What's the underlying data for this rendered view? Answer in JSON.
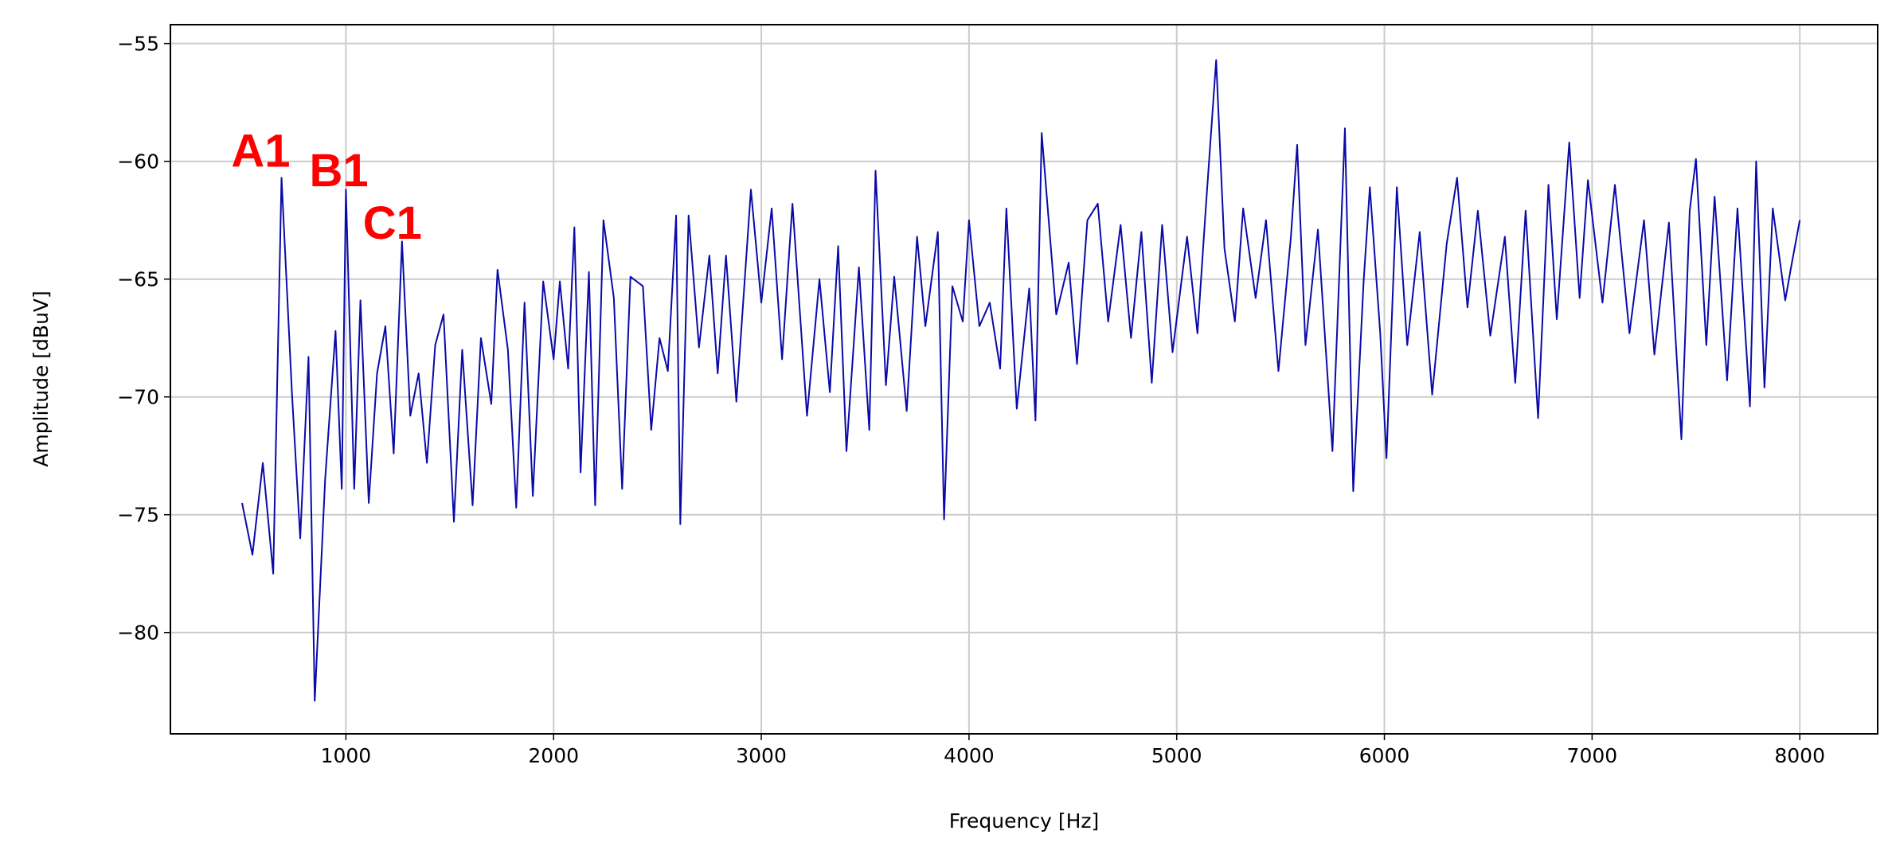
{
  "chart_data": {
    "type": "line",
    "xlabel": "Frequency [Hz]",
    "ylabel": "Amplitude [dBuV]",
    "x": [
      500,
      550,
      600,
      650,
      690,
      740,
      780,
      820,
      850,
      900,
      950,
      980,
      1000,
      1040,
      1070,
      1110,
      1150,
      1190,
      1230,
      1270,
      1310,
      1350,
      1390,
      1430,
      1470,
      1520,
      1560,
      1610,
      1650,
      1700,
      1730,
      1780,
      1820,
      1860,
      1900,
      1950,
      2000,
      2030,
      2070,
      2100,
      2130,
      2170,
      2200,
      2240,
      2290,
      2330,
      2370,
      2430,
      2470,
      2510,
      2550,
      2590,
      2610,
      2650,
      2700,
      2750,
      2790,
      2830,
      2880,
      2950,
      3000,
      3050,
      3100,
      3150,
      3220,
      3280,
      3330,
      3370,
      3410,
      3470,
      3520,
      3550,
      3600,
      3640,
      3700,
      3750,
      3790,
      3850,
      3880,
      3920,
      3970,
      4000,
      4050,
      4100,
      4150,
      4180,
      4230,
      4290,
      4320,
      4350,
      4420,
      4480,
      4520,
      4570,
      4620,
      4670,
      4730,
      4780,
      4830,
      4880,
      4930,
      4980,
      5050,
      5100,
      5140,
      5190,
      5230,
      5280,
      5320,
      5380,
      5430,
      5490,
      5550,
      5580,
      5620,
      5680,
      5750,
      5810,
      5850,
      5900,
      5930,
      5980,
      6010,
      6060,
      6110,
      6170,
      6230,
      6300,
      6350,
      6400,
      6450,
      6510,
      6580,
      6630,
      6680,
      6740,
      6790,
      6830,
      6890,
      6940,
      6980,
      7050,
      7110,
      7180,
      7250,
      7300,
      7370,
      7430,
      7470,
      7500,
      7550,
      7590,
      7650,
      7700,
      7760,
      7790,
      7830,
      7870,
      7930,
      7960,
      8000
    ],
    "series": [
      {
        "color": "#0a0aa8",
        "values": [
          -74.5,
          -76.7,
          -72.8,
          -77.5,
          -60.7,
          -69.8,
          -76.0,
          -68.3,
          -82.9,
          -73.5,
          -67.2,
          -73.9,
          -61.2,
          -73.9,
          -65.9,
          -74.5,
          -69.0,
          -67.0,
          -72.4,
          -63.4,
          -70.8,
          -69.0,
          -72.8,
          -67.8,
          -66.5,
          -75.3,
          -68.0,
          -74.6,
          -67.5,
          -70.3,
          -64.6,
          -68.0,
          -74.7,
          -66.0,
          -74.2,
          -65.1,
          -68.4,
          -65.1,
          -68.8,
          -62.8,
          -73.2,
          -64.7,
          -74.6,
          -62.5,
          -65.8,
          -73.9,
          -64.9,
          -65.3,
          -71.4,
          -67.5,
          -68.9,
          -62.3,
          -75.4,
          -62.3,
          -67.9,
          -64.0,
          -69.0,
          -64.0,
          -70.2,
          -61.2,
          -66.0,
          -62.0,
          -68.4,
          -61.8,
          -70.8,
          -65.0,
          -69.8,
          -63.6,
          -72.3,
          -64.5,
          -71.4,
          -60.4,
          -69.5,
          -64.9,
          -70.6,
          -63.2,
          -67.0,
          -63.0,
          -75.2,
          -65.3,
          -66.8,
          -62.5,
          -67.0,
          -66.0,
          -68.8,
          -62.0,
          -70.5,
          -65.4,
          -71.0,
          -58.8,
          -66.5,
          -64.3,
          -68.6,
          -62.5,
          -61.8,
          -66.8,
          -62.7,
          -67.5,
          -63.0,
          -69.4,
          -62.7,
          -68.1,
          -63.2,
          -67.3,
          -62.0,
          -55.7,
          -63.7,
          -66.8,
          -62.0,
          -65.8,
          -62.5,
          -68.9,
          -63.2,
          -59.3,
          -67.8,
          -62.9,
          -72.3,
          -58.6,
          -74.0,
          -65.1,
          -61.1,
          -67.3,
          -72.6,
          -61.1,
          -67.8,
          -63.0,
          -69.9,
          -63.5,
          -60.7,
          -66.2,
          -62.1,
          -67.4,
          -63.2,
          -69.4,
          -62.1,
          -70.9,
          -61.0,
          -66.7,
          -59.2,
          -65.8,
          -60.8,
          -66.0,
          -61.0,
          -67.3,
          -62.5,
          -68.2,
          -62.6,
          -71.8,
          -62.1,
          -59.9,
          -67.8,
          -61.5,
          -69.3,
          -62.0,
          -70.4,
          -60.0,
          -69.6,
          -62.0,
          -65.9,
          -64.4,
          -62.5
        ]
      }
    ],
    "annotations": [
      {
        "text": "A1",
        "x": 448,
        "y": -60.23,
        "color": "#ff0000"
      },
      {
        "text": "B1",
        "x": 824,
        "y": -61.06,
        "color": "#ff0000"
      },
      {
        "text": "C1",
        "x": 1082,
        "y": -63.28,
        "color": "#ff0000"
      }
    ],
    "xlim": [
      155,
      8375
    ],
    "ylim": [
      -84.3,
      -54.2
    ],
    "xticks": [
      1000,
      2000,
      3000,
      4000,
      5000,
      6000,
      7000,
      8000
    ],
    "yticks": [
      {
        "value": -80,
        "label": "−80"
      },
      {
        "value": -75,
        "label": "−75"
      },
      {
        "value": -70,
        "label": "−70"
      },
      {
        "value": -65,
        "label": "−65"
      },
      {
        "value": -60,
        "label": "−60"
      },
      {
        "value": -55,
        "label": "−55"
      }
    ],
    "grid": true
  }
}
